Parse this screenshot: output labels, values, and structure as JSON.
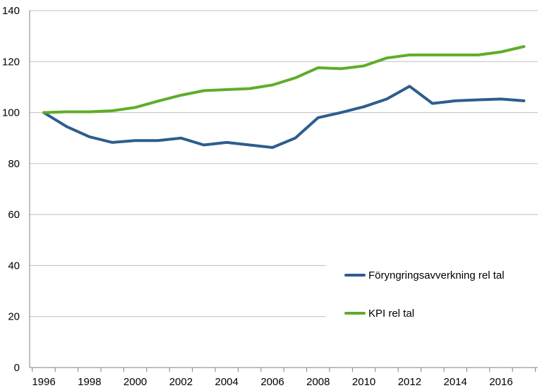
{
  "chart_data": {
    "type": "line",
    "x": [
      1996,
      1997,
      1998,
      1999,
      2000,
      2001,
      2002,
      2003,
      2004,
      2005,
      2006,
      2007,
      2008,
      2009,
      2010,
      2011,
      2012,
      2013,
      2014,
      2015,
      2016,
      2017
    ],
    "x_tick_labels": [
      "1996",
      "1998",
      "2000",
      "2002",
      "2004",
      "2006",
      "2008",
      "2010",
      "2012",
      "2014",
      "2016"
    ],
    "y_tick_labels": [
      "0",
      "20",
      "40",
      "60",
      "80",
      "100",
      "120",
      "140"
    ],
    "ylim": [
      0,
      140
    ],
    "grid": true,
    "legend_position": "inside-right",
    "series": [
      {
        "name": "Föryngringsavverkning rel tal",
        "color": "#2e5d8e",
        "values": [
          100,
          94.5,
          90.5,
          88.3,
          89,
          89,
          90,
          87.3,
          88.3,
          87.3,
          86.3,
          90,
          98,
          100,
          102.3,
          105.3,
          110.3,
          103.6,
          104.6,
          105,
          105.3,
          104.6
        ]
      },
      {
        "name": "KPI rel tal",
        "color": "#5fac2a",
        "values": [
          100,
          100.3,
          100.3,
          100.7,
          102,
          104.5,
          106.8,
          108.6,
          109,
          109.4,
          110.8,
          113.6,
          117.6,
          117.2,
          118.3,
          121.4,
          122.6,
          122.6,
          122.6,
          122.6,
          123.8,
          125.9
        ]
      }
    ]
  }
}
